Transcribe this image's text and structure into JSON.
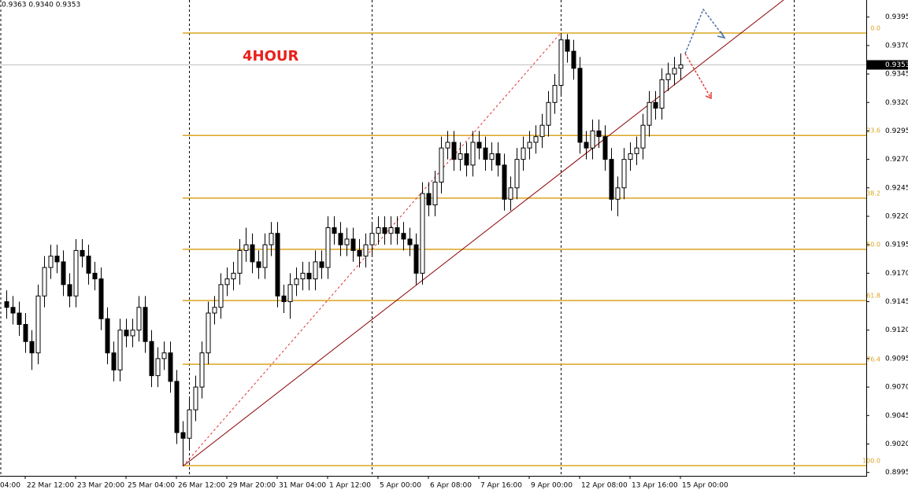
{
  "chart_data": {
    "type": "candlestick",
    "title": "4HOUR",
    "header": "0.9363 0.9340 0.9353",
    "ylim": [
      0.8992,
      0.941
    ],
    "xlim": [
      -1,
      136.5
    ],
    "yticks": [
      0.9395,
      {
        "value": 0.937,
        "label": "0.9370"
      },
      0.9345,
      {
        "value": 0.932,
        "label": "0.9320"
      },
      0.9295,
      {
        "value": 0.927,
        "label": "0.9270"
      },
      0.9245,
      {
        "value": 0.922,
        "label": "0.9220"
      },
      0.9195,
      {
        "value": 0.917,
        "label": "0.9170"
      },
      0.9145,
      {
        "value": 0.912,
        "label": "0.9120"
      },
      0.9095,
      {
        "value": 0.907,
        "label": "0.9070"
      },
      0.9045,
      {
        "value": 0.902,
        "label": "0.9020"
      },
      0.8995
    ],
    "xticks": [
      {
        "value": -5,
        "label": "04:00"
      },
      {
        "value": 3,
        "label": "22 Mar 12:00"
      },
      {
        "value": 11,
        "label": "23 Mar 20:00"
      },
      {
        "value": 19,
        "label": "25 Mar 04:00"
      },
      {
        "value": 27,
        "label": "26 Mar 12:00"
      },
      {
        "value": 35,
        "label": "29 Mar 20:00"
      },
      {
        "value": 43,
        "label": "31 Mar 04:00"
      },
      {
        "value": 51,
        "label": "1 Apr 12:00"
      },
      {
        "value": 59,
        "label": "5 Apr 00:00"
      },
      {
        "value": 67,
        "label": "6 Apr 08:00"
      },
      {
        "value": 75,
        "label": "7 Apr 16:00"
      },
      {
        "value": 83,
        "label": "9 Apr 00:00"
      },
      {
        "value": 91,
        "label": "12 Apr 08:00"
      },
      {
        "value": 99,
        "label": "13 Apr 16:00"
      },
      {
        "value": 107,
        "label": "15 Apr 00:00"
      }
    ],
    "fib_color": "#daa520",
    "fib_levels": [
      {
        "value": 0.9381,
        "label": "0.0"
      },
      {
        "value": 0.9291,
        "label": "23.6"
      },
      {
        "value": 0.9236,
        "label": "38.2"
      },
      {
        "value": 0.9191,
        "label": "50.0"
      },
      {
        "value": 0.9146,
        "label": "61.8"
      },
      {
        "value": 0.909,
        "label": "76.4"
      },
      {
        "value": 0.9001,
        "label": "100.0"
      }
    ],
    "ohlc": [
      [
        0.9145,
        0.9155,
        0.913,
        0.914
      ],
      [
        0.914,
        0.915,
        0.9125,
        0.9135
      ],
      [
        0.9135,
        0.9145,
        0.9115,
        0.9125
      ],
      [
        0.9125,
        0.9135,
        0.91,
        0.911
      ],
      [
        0.911,
        0.912,
        0.9085,
        0.91
      ],
      [
        0.91,
        0.916,
        0.909,
        0.915
      ],
      [
        0.915,
        0.9185,
        0.914,
        0.9175
      ],
      [
        0.9175,
        0.9195,
        0.9165,
        0.9185
      ],
      [
        0.9185,
        0.9195,
        0.917,
        0.918
      ],
      [
        0.918,
        0.919,
        0.915,
        0.916
      ],
      [
        0.916,
        0.917,
        0.914,
        0.915
      ],
      [
        0.915,
        0.92,
        0.914,
        0.919
      ],
      [
        0.919,
        0.92,
        0.9175,
        0.9185
      ],
      [
        0.9185,
        0.9195,
        0.916,
        0.917
      ],
      [
        0.917,
        0.918,
        0.9155,
        0.9165
      ],
      [
        0.9165,
        0.9175,
        0.912,
        0.913
      ],
      [
        0.913,
        0.914,
        0.909,
        0.91
      ],
      [
        0.91,
        0.911,
        0.9075,
        0.9085
      ],
      [
        0.9085,
        0.913,
        0.9075,
        0.912
      ],
      [
        0.912,
        0.913,
        0.9105,
        0.9115
      ],
      [
        0.9115,
        0.913,
        0.9105,
        0.912
      ],
      [
        0.912,
        0.915,
        0.911,
        0.914
      ],
      [
        0.914,
        0.915,
        0.91,
        0.911
      ],
      [
        0.911,
        0.912,
        0.907,
        0.908
      ],
      [
        0.908,
        0.9105,
        0.907,
        0.9095
      ],
      [
        0.9095,
        0.911,
        0.9085,
        0.91
      ],
      [
        0.91,
        0.911,
        0.9065,
        0.9075
      ],
      [
        0.9075,
        0.9085,
        0.902,
        0.903
      ],
      [
        0.903,
        0.904,
        0.9001,
        0.9025
      ],
      [
        0.9025,
        0.906,
        0.9015,
        0.905
      ],
      [
        0.905,
        0.908,
        0.904,
        0.907
      ],
      [
        0.907,
        0.911,
        0.906,
        0.91
      ],
      [
        0.91,
        0.9145,
        0.909,
        0.9135
      ],
      [
        0.9135,
        0.915,
        0.9125,
        0.914
      ],
      [
        0.914,
        0.917,
        0.913,
        0.916
      ],
      [
        0.916,
        0.9175,
        0.915,
        0.9165
      ],
      [
        0.9165,
        0.918,
        0.9155,
        0.917
      ],
      [
        0.917,
        0.92,
        0.916,
        0.919
      ],
      [
        0.919,
        0.921,
        0.918,
        0.9195
      ],
      [
        0.9195,
        0.9205,
        0.917,
        0.918
      ],
      [
        0.918,
        0.919,
        0.9165,
        0.9175
      ],
      [
        0.9175,
        0.9205,
        0.9165,
        0.9195
      ],
      [
        0.9195,
        0.9215,
        0.9185,
        0.9205
      ],
      [
        0.9205,
        0.9215,
        0.914,
        0.915
      ],
      [
        0.915,
        0.916,
        0.9135,
        0.9145
      ],
      [
        0.9145,
        0.917,
        0.913,
        0.916
      ],
      [
        0.916,
        0.9175,
        0.915,
        0.9165
      ],
      [
        0.9165,
        0.918,
        0.9155,
        0.917
      ],
      [
        0.917,
        0.918,
        0.9155,
        0.9165
      ],
      [
        0.9165,
        0.919,
        0.9155,
        0.918
      ],
      [
        0.918,
        0.919,
        0.9165,
        0.9175
      ],
      [
        0.9175,
        0.922,
        0.9165,
        0.921
      ],
      [
        0.921,
        0.922,
        0.9195,
        0.9205
      ],
      [
        0.9205,
        0.9215,
        0.9185,
        0.9195
      ],
      [
        0.9195,
        0.921,
        0.9185,
        0.92
      ],
      [
        0.92,
        0.921,
        0.918,
        0.919
      ],
      [
        0.919,
        0.92,
        0.9175,
        0.9185
      ],
      [
        0.9185,
        0.9205,
        0.9175,
        0.9195
      ],
      [
        0.9195,
        0.9215,
        0.9185,
        0.9205
      ],
      [
        0.9205,
        0.922,
        0.9195,
        0.921
      ],
      [
        0.921,
        0.922,
        0.9195,
        0.9205
      ],
      [
        0.9205,
        0.922,
        0.9195,
        0.921
      ],
      [
        0.921,
        0.922,
        0.9195,
        0.9205
      ],
      [
        0.9205,
        0.9215,
        0.919,
        0.92
      ],
      [
        0.92,
        0.921,
        0.9185,
        0.9195
      ],
      [
        0.9195,
        0.9205,
        0.916,
        0.917
      ],
      [
        0.917,
        0.925,
        0.916,
        0.924
      ],
      [
        0.924,
        0.925,
        0.922,
        0.923
      ],
      [
        0.923,
        0.926,
        0.922,
        0.925
      ],
      [
        0.925,
        0.929,
        0.924,
        0.928
      ],
      [
        0.928,
        0.9295,
        0.927,
        0.9285
      ],
      [
        0.9285,
        0.9295,
        0.926,
        0.927
      ],
      [
        0.927,
        0.9285,
        0.926,
        0.9275
      ],
      [
        0.9275,
        0.9285,
        0.9255,
        0.9265
      ],
      [
        0.9265,
        0.9295,
        0.9255,
        0.9285
      ],
      [
        0.9285,
        0.9295,
        0.927,
        0.928
      ],
      [
        0.928,
        0.929,
        0.926,
        0.927
      ],
      [
        0.927,
        0.9285,
        0.926,
        0.9275
      ],
      [
        0.9275,
        0.9285,
        0.9255,
        0.9265
      ],
      [
        0.9265,
        0.9275,
        0.9225,
        0.9235
      ],
      [
        0.9235,
        0.9255,
        0.9225,
        0.9245
      ],
      [
        0.9245,
        0.928,
        0.9235,
        0.927
      ],
      [
        0.927,
        0.929,
        0.926,
        0.928
      ],
      [
        0.928,
        0.9295,
        0.927,
        0.9285
      ],
      [
        0.9285,
        0.93,
        0.9275,
        0.929
      ],
      [
        0.929,
        0.931,
        0.928,
        0.93
      ],
      [
        0.93,
        0.933,
        0.929,
        0.932
      ],
      [
        0.932,
        0.9345,
        0.931,
        0.9335
      ],
      [
        0.9335,
        0.9381,
        0.9325,
        0.9375
      ],
      [
        0.9375,
        0.938,
        0.9355,
        0.9365
      ],
      [
        0.9365,
        0.9375,
        0.934,
        0.935
      ],
      [
        0.935,
        0.936,
        0.9275,
        0.9285
      ],
      [
        0.9285,
        0.9295,
        0.927,
        0.928
      ],
      [
        0.928,
        0.9305,
        0.927,
        0.9295
      ],
      [
        0.9295,
        0.9305,
        0.928,
        0.929
      ],
      [
        0.929,
        0.93,
        0.926,
        0.927
      ],
      [
        0.927,
        0.928,
        0.9225,
        0.9235
      ],
      [
        0.9235,
        0.9255,
        0.922,
        0.9245
      ],
      [
        0.9245,
        0.928,
        0.9235,
        0.927
      ],
      [
        0.927,
        0.9285,
        0.926,
        0.9275
      ],
      [
        0.9275,
        0.929,
        0.9265,
        0.928
      ],
      [
        0.928,
        0.931,
        0.927,
        0.93
      ],
      [
        0.93,
        0.933,
        0.929,
        0.932
      ],
      [
        0.932,
        0.933,
        0.9305,
        0.9315
      ],
      [
        0.9315,
        0.935,
        0.9305,
        0.934
      ],
      [
        0.934,
        0.9355,
        0.933,
        0.9345
      ],
      [
        0.9345,
        0.936,
        0.9335,
        0.935
      ],
      [
        0.935,
        0.9363,
        0.934,
        0.9353
      ]
    ]
  }
}
